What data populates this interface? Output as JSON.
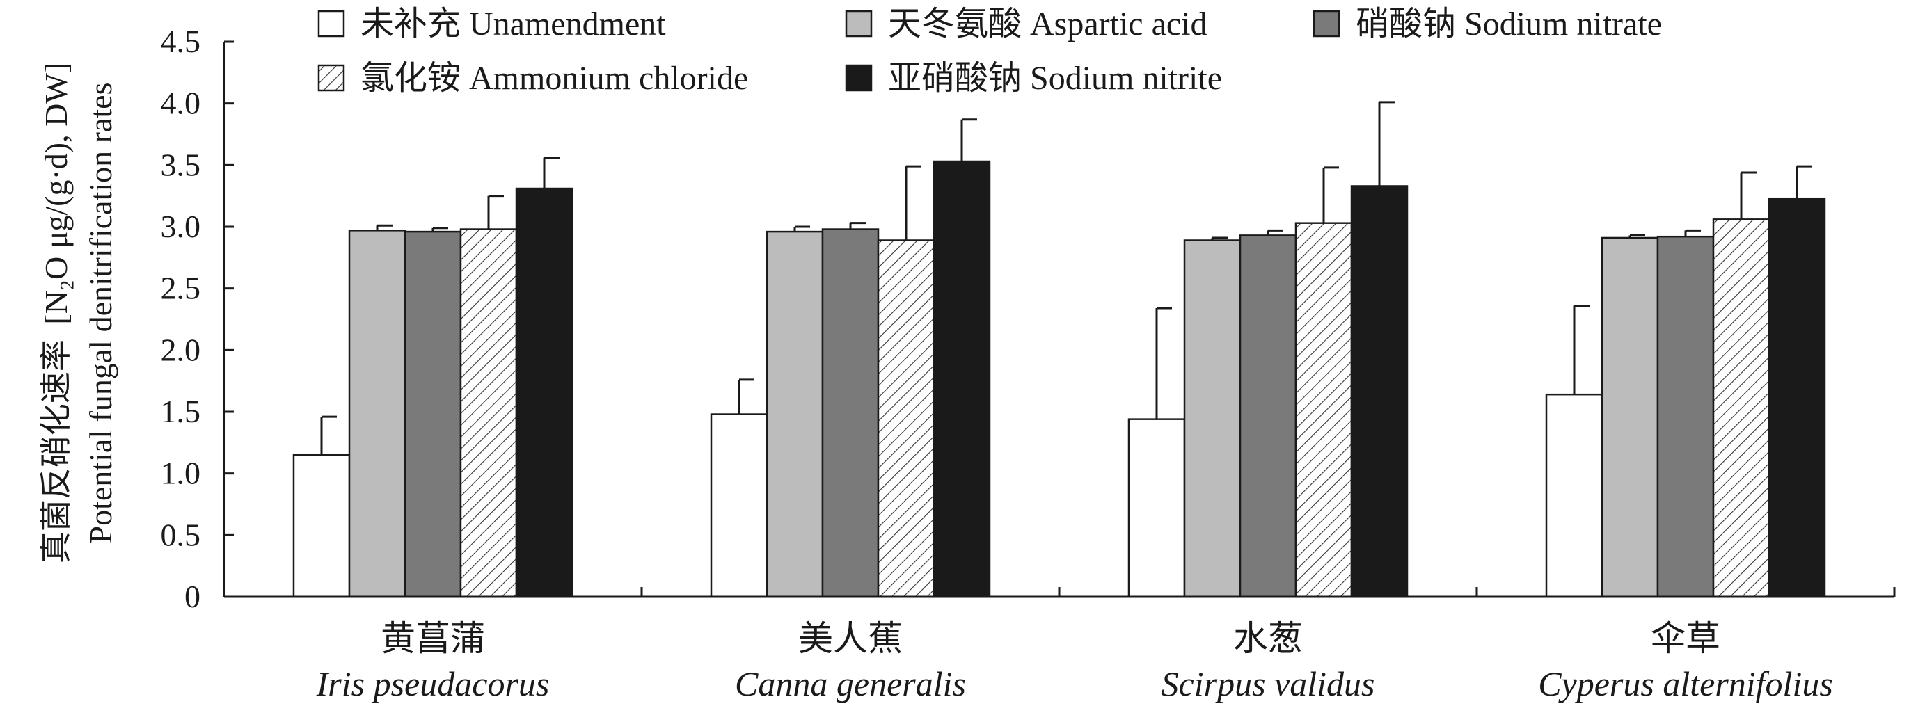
{
  "chart_data": {
    "type": "bar",
    "title": "",
    "ylabel_cn": "真菌反硝化速率",
    "ylabel_units": "[N₂O μg/(g·d), DW]",
    "ylabel_en": "Potential fungal denitrification rates",
    "xlabel": "",
    "ylim": [
      0,
      4.5
    ],
    "ytick_labels": [
      "0",
      "0.5",
      "1.0",
      "1.5",
      "2.0",
      "2.5",
      "3.0",
      "3.5",
      "4.0",
      "4.5"
    ],
    "categories": [
      {
        "cn": "黄菖蒲",
        "en": "Iris pseudacorus"
      },
      {
        "cn": "美人蕉",
        "en": "Canna generalis"
      },
      {
        "cn": "水葱",
        "en": "Scirpus validus"
      },
      {
        "cn": "伞草",
        "en": "Cyperus alternifolius"
      }
    ],
    "series": [
      {
        "name": "未补充 Unamendment",
        "fill": "#ffffff",
        "pattern": "none",
        "values": [
          1.15,
          1.48,
          1.44,
          1.64
        ],
        "errors": [
          0.31,
          0.28,
          0.9,
          0.72
        ]
      },
      {
        "name": "天冬氨酸 Aspartic acid",
        "fill": "#bcbcbc",
        "pattern": "none",
        "values": [
          2.97,
          2.96,
          2.89,
          2.91
        ],
        "errors": [
          0.04,
          0.04,
          0.02,
          0.02
        ]
      },
      {
        "name": "硝酸钠 Sodium nitrate",
        "fill": "#7a7a7a",
        "pattern": "none",
        "values": [
          2.96,
          2.98,
          2.93,
          2.92
        ],
        "errors": [
          0.03,
          0.05,
          0.04,
          0.05
        ]
      },
      {
        "name": "氯化铵 Ammonium chloride",
        "fill": "#ffffff",
        "pattern": "hatch",
        "values": [
          2.98,
          2.89,
          3.03,
          3.06
        ],
        "errors": [
          0.27,
          0.6,
          0.45,
          0.38
        ]
      },
      {
        "name": "亚硝酸钠 Sodium nitrite",
        "fill": "#1a1a1a",
        "pattern": "none",
        "values": [
          3.31,
          3.53,
          3.33,
          3.23
        ],
        "errors": [
          0.25,
          0.34,
          0.68,
          0.26
        ]
      }
    ],
    "legend_position": "top",
    "grid": false
  }
}
